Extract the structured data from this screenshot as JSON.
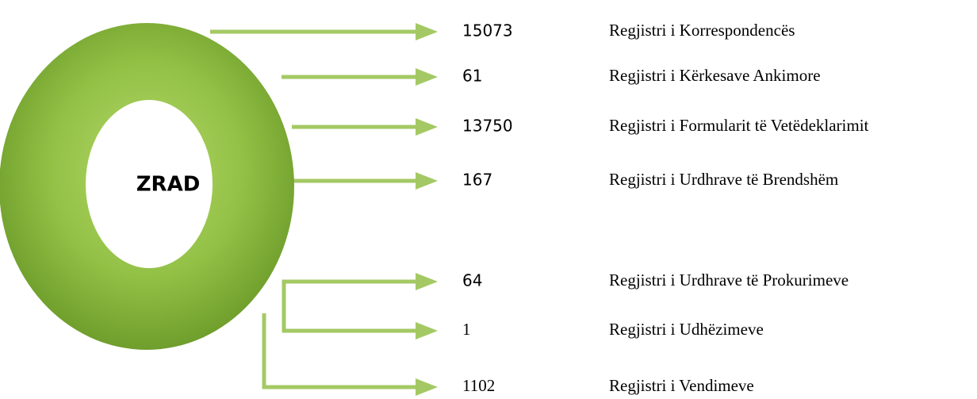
{
  "center": "ZRAD",
  "items": [
    {
      "number": "15073",
      "label": "Regjistri i Korrespondencës"
    },
    {
      "number": "61",
      "label": "Regjistri i Kërkesave Ankimore"
    },
    {
      "number": "13750",
      "label": "Regjistri i Formularit të Vetëdeklarimit"
    },
    {
      "number": "167",
      "label": "Regjistri i Urdhrave të Brendshëm"
    },
    {
      "number": "64",
      "label": "Regjistri i Urdhrave të Prokurimeve"
    },
    {
      "number": "1",
      "label": "Regjistri i Udhëzimeve"
    },
    {
      "number": "1102",
      "label": "Regjistri i Vendimeve"
    }
  ]
}
